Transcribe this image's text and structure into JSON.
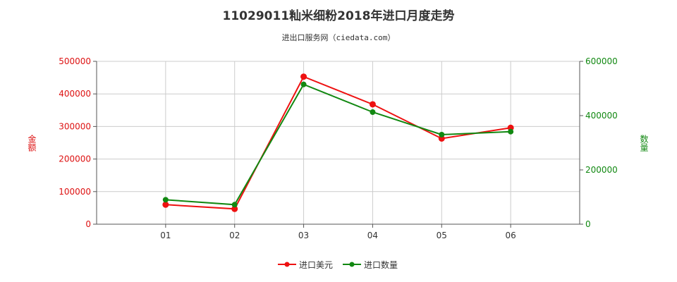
{
  "chart_data": {
    "type": "line",
    "title": "11029011籼米细粉2018年进口月度走势",
    "subtitle": "进出口服务网（ciedata.com）",
    "categories": [
      "01",
      "02",
      "03",
      "04",
      "05",
      "06"
    ],
    "series": [
      {
        "name": "进口美元",
        "axis": "left",
        "color": "#ee1111",
        "values": [
          60000,
          47000,
          453000,
          368000,
          263000,
          296000
        ]
      },
      {
        "name": "进口数量",
        "axis": "right",
        "color": "#118811",
        "values": [
          90000,
          72000,
          515000,
          413000,
          330000,
          341000
        ]
      }
    ],
    "y_left": {
      "label": "金额",
      "min": 0,
      "max": 500000,
      "ticks": [
        "0",
        "100000",
        "200000",
        "300000",
        "400000",
        "500000"
      ],
      "color": "#dd1111"
    },
    "y_right": {
      "label": "数量",
      "min": 0,
      "max": 600000,
      "ticks": [
        "0",
        "200000",
        "400000",
        "600000"
      ],
      "color": "#118811"
    },
    "grid": true,
    "legend_position": "bottom"
  }
}
